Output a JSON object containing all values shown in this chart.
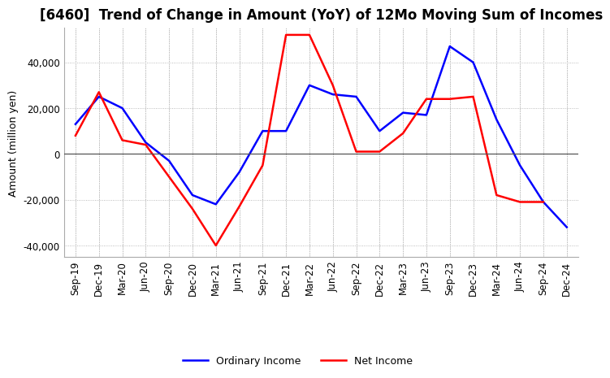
{
  "title": "[6460]  Trend of Change in Amount (YoY) of 12Mo Moving Sum of Incomes",
  "ylabel": "Amount (million yen)",
  "x_labels": [
    "Sep-19",
    "Dec-19",
    "Mar-20",
    "Jun-20",
    "Sep-20",
    "Dec-20",
    "Mar-21",
    "Jun-21",
    "Sep-21",
    "Dec-21",
    "Mar-22",
    "Jun-22",
    "Sep-22",
    "Dec-22",
    "Mar-23",
    "Jun-23",
    "Sep-23",
    "Dec-23",
    "Mar-24",
    "Jun-24",
    "Sep-24",
    "Dec-24"
  ],
  "ordinary_income": [
    13000,
    25000,
    20000,
    5000,
    -3000,
    -18000,
    -22000,
    -8000,
    10000,
    10000,
    30000,
    26000,
    25000,
    10000,
    18000,
    17000,
    47000,
    40000,
    15000,
    -5000,
    -21000,
    -32000
  ],
  "net_income": [
    8000,
    27000,
    6000,
    4000,
    -10000,
    -24000,
    -40000,
    -23000,
    -5000,
    52000,
    52000,
    30000,
    1000,
    1000,
    9000,
    24000,
    24000,
    25000,
    -18000,
    -21000,
    -21000,
    null
  ],
  "ordinary_color": "#0000ff",
  "net_color": "#ff0000",
  "ylim": [
    -45000,
    55000
  ],
  "yticks": [
    -40000,
    -20000,
    0,
    20000,
    40000
  ],
  "grid_color": "#aaaaaa",
  "background_color": "#ffffff",
  "title_fontsize": 12,
  "label_fontsize": 9,
  "tick_fontsize": 8.5
}
